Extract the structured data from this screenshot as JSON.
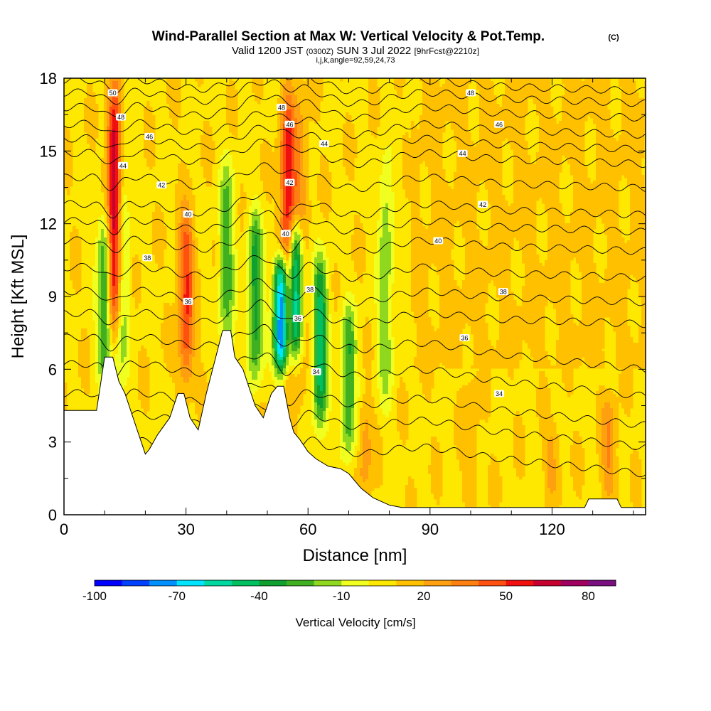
{
  "chart_data": {
    "type": "heatmap",
    "title": "Wind-Parallel Section at Max W: Vertical Velocity & Pot.Temp.",
    "title_mark": "(C)",
    "subtitle_parts": [
      "Valid 1200 JST",
      "(0300Z)",
      "SUN 3 Jul 2022",
      "[9hrFcst@2210z]"
    ],
    "subtitle2": "i,j,k,angle=92,59,24,73",
    "xlabel": "Distance [nm]",
    "ylabel": "Height [Kft MSL]",
    "xlim": [
      0,
      143
    ],
    "ylim": [
      0,
      18
    ],
    "x_ticks": [
      0,
      30,
      60,
      90,
      120
    ],
    "x_tick_labels": [
      "0",
      "30",
      "60",
      "90",
      "120"
    ],
    "y_ticks": [
      0,
      3,
      6,
      9,
      12,
      15,
      18
    ],
    "y_tick_labels": [
      "0",
      "3",
      "6",
      "9",
      "12",
      "15",
      "18"
    ],
    "colorbar": {
      "label": "Vertical Velocity [cm/s]",
      "colors": [
        "#0000ff",
        "#0040ff",
        "#0090ff",
        "#00e4ff",
        "#00d8a0",
        "#00c060",
        "#10a030",
        "#40b020",
        "#90d820",
        "#f0ff20",
        "#ffe800",
        "#ffc000",
        "#ffa010",
        "#ff8010",
        "#ff5010",
        "#f01010",
        "#c80030",
        "#a00060",
        "#7a1080"
      ],
      "tick_values": [
        -100,
        -70,
        -40,
        -10,
        20,
        50,
        80
      ],
      "tick_labels": [
        "-100",
        "-70",
        "-40",
        "-10",
        "20",
        "50",
        "80"
      ],
      "range": [
        -100,
        90
      ]
    },
    "features": {
      "updrafts": [
        {
          "x": 12.5,
          "ymin": 7,
          "ymax": 18,
          "peak": 85
        },
        {
          "x": 30,
          "ymin": 5,
          "ymax": 13,
          "peak": 50
        },
        {
          "x": 55,
          "ymin": 5.5,
          "ymax": 18,
          "peak": 60
        },
        {
          "x": 58,
          "ymin": 4,
          "ymax": 18,
          "peak": 30
        },
        {
          "x": 74,
          "ymin": 0.5,
          "ymax": 5,
          "peak": 25
        },
        {
          "x": 134,
          "ymin": 0.5,
          "ymax": 5,
          "peak": 30
        },
        {
          "x": 120,
          "ymin": 0.5,
          "ymax": 4,
          "peak": 22
        },
        {
          "x": 100,
          "ymin": 0.5,
          "ymax": 6,
          "peak": 18
        }
      ],
      "downdrafts": [
        {
          "x": 10,
          "ymin": 5,
          "ymax": 13,
          "peak": -35
        },
        {
          "x": 14,
          "ymin": 5,
          "ymax": 17,
          "peak": -25
        },
        {
          "x": 40,
          "ymin": 6,
          "ymax": 15,
          "peak": -25
        },
        {
          "x": 47,
          "ymin": 5,
          "ymax": 13,
          "peak": -35
        },
        {
          "x": 53.5,
          "ymin": 5.5,
          "ymax": 11,
          "peak": -95
        },
        {
          "x": 57,
          "ymin": 6,
          "ymax": 12.5,
          "peak": -75
        },
        {
          "x": 63,
          "ymin": 3,
          "ymax": 11,
          "peak": -45
        },
        {
          "x": 70,
          "ymin": 2,
          "ymax": 9,
          "peak": -30
        },
        {
          "x": 79,
          "ymin": 4,
          "ymax": 15,
          "peak": -20
        }
      ],
      "background": 8
    },
    "terrain": [
      [
        0,
        4.3
      ],
      [
        8,
        4.3
      ],
      [
        10,
        6.5
      ],
      [
        12,
        6.5
      ],
      [
        13.5,
        5.5
      ],
      [
        15,
        5
      ],
      [
        17,
        4
      ],
      [
        19,
        3
      ],
      [
        20,
        2.5
      ],
      [
        21,
        2.7
      ],
      [
        23,
        3.3
      ],
      [
        26,
        4
      ],
      [
        28,
        5
      ],
      [
        29.5,
        5
      ],
      [
        31,
        4
      ],
      [
        33,
        3.5
      ],
      [
        35,
        5
      ],
      [
        37,
        6.3
      ],
      [
        39,
        7.6
      ],
      [
        41,
        7.6
      ],
      [
        42,
        6.5
      ],
      [
        44,
        6
      ],
      [
        46,
        5
      ],
      [
        47,
        4.5
      ],
      [
        49,
        4
      ],
      [
        51,
        5
      ],
      [
        52.5,
        5.3
      ],
      [
        54,
        5.3
      ],
      [
        55.5,
        4
      ],
      [
        56.5,
        3.4
      ],
      [
        58,
        3.1
      ],
      [
        60,
        2.6
      ],
      [
        62,
        2.3
      ],
      [
        65,
        2
      ],
      [
        68,
        1.9
      ],
      [
        70,
        1.7
      ],
      [
        73,
        1.1
      ],
      [
        76,
        0.7
      ],
      [
        80,
        0.4
      ],
      [
        83,
        0.3
      ],
      [
        128,
        0.3
      ],
      [
        129,
        0.65
      ],
      [
        131,
        0.65
      ],
      [
        136,
        0.65
      ],
      [
        137,
        0.3
      ],
      [
        143,
        0.3
      ]
    ],
    "theta_contours": [
      {
        "value": 34,
        "label": "34"
      },
      {
        "value": 36,
        "label": "36"
      },
      {
        "value": 38,
        "label": "38"
      },
      {
        "value": 40,
        "label": "40"
      },
      {
        "value": 42,
        "label": "42"
      },
      {
        "value": 44,
        "label": "44"
      },
      {
        "value": 46,
        "label": "46"
      },
      {
        "value": 48,
        "label": "48"
      },
      {
        "value": 50,
        "label": "50"
      }
    ],
    "contour_labels": [
      {
        "text": "50",
        "x": 12,
        "y": 17.4
      },
      {
        "text": "48",
        "x": 14,
        "y": 16.4
      },
      {
        "text": "46",
        "x": 21,
        "y": 15.6
      },
      {
        "text": "44",
        "x": 14.5,
        "y": 14.4
      },
      {
        "text": "42",
        "x": 24,
        "y": 13.6
      },
      {
        "text": "40",
        "x": 30.5,
        "y": 12.4
      },
      {
        "text": "38",
        "x": 20.5,
        "y": 10.6
      },
      {
        "text": "36",
        "x": 30.5,
        "y": 8.8
      },
      {
        "text": "48",
        "x": 53.5,
        "y": 16.8
      },
      {
        "text": "46",
        "x": 55.5,
        "y": 16.1
      },
      {
        "text": "44",
        "x": 64,
        "y": 15.3
      },
      {
        "text": "42",
        "x": 55.5,
        "y": 13.7
      },
      {
        "text": "40",
        "x": 54.5,
        "y": 11.6
      },
      {
        "text": "38",
        "x": 60.5,
        "y": 9.3
      },
      {
        "text": "36",
        "x": 57.5,
        "y": 8.1
      },
      {
        "text": "34",
        "x": 62,
        "y": 5.9
      },
      {
        "text": "48",
        "x": 100,
        "y": 17.4
      },
      {
        "text": "46",
        "x": 107,
        "y": 16.1
      },
      {
        "text": "44",
        "x": 98,
        "y": 14.9
      },
      {
        "text": "42",
        "x": 103,
        "y": 12.8
      },
      {
        "text": "40",
        "x": 92,
        "y": 11.3
      },
      {
        "text": "38",
        "x": 108,
        "y": 9.2
      },
      {
        "text": "36",
        "x": 98.5,
        "y": 7.3
      },
      {
        "text": "34",
        "x": 107,
        "y": 5.0
      }
    ]
  }
}
